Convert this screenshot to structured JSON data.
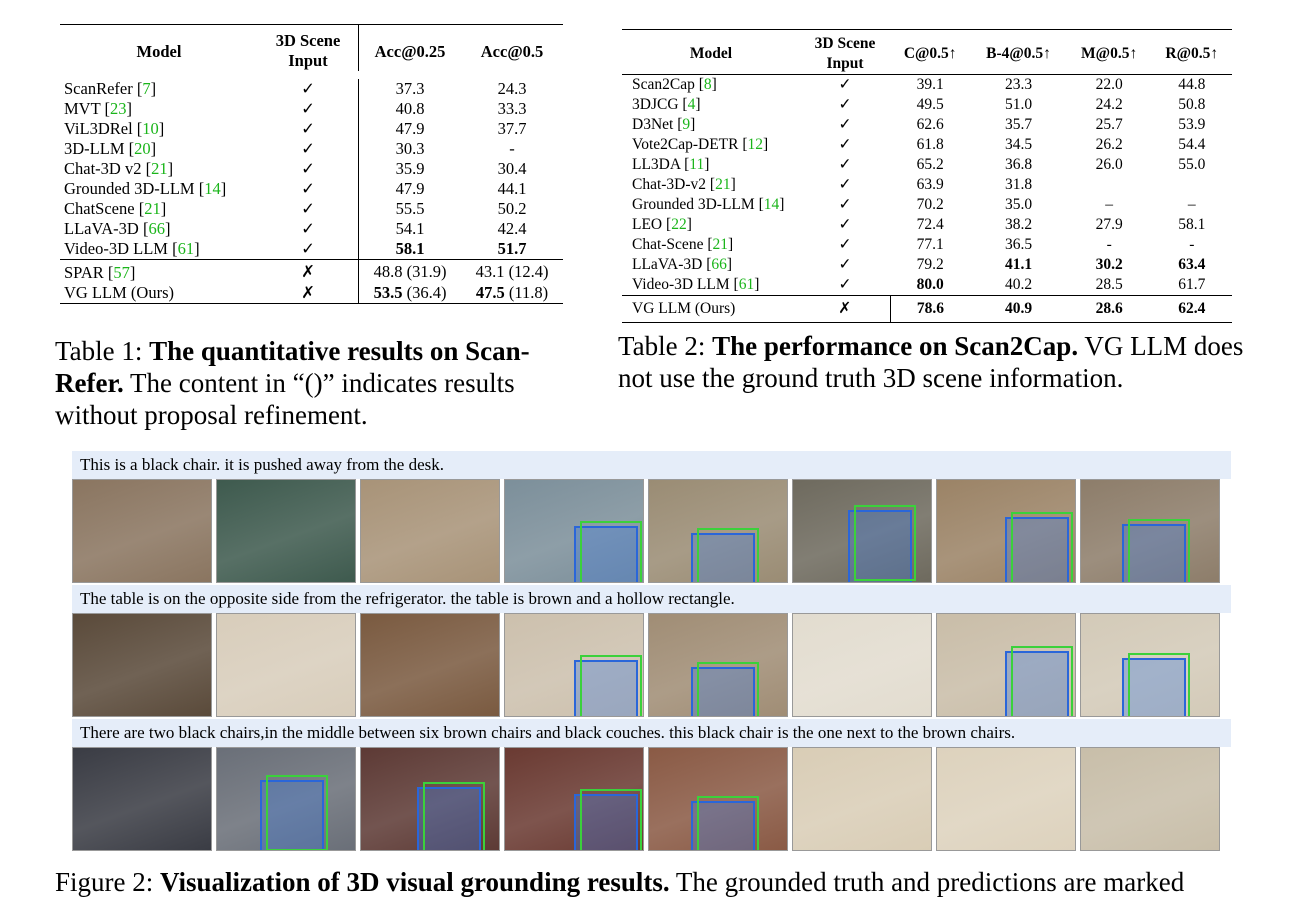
{
  "table1": {
    "headers": [
      "Model",
      "3D Scene Input",
      "Acc@0.25",
      "Acc@0.5"
    ],
    "header_lines": {
      "scene1": "3D Scene",
      "scene2": "Input"
    },
    "rows": [
      {
        "model": "ScanRefer ",
        "cite": "7",
        "input": "✓",
        "a25": "37.3",
        "a50": "24.3"
      },
      {
        "model": "MVT ",
        "cite": "23",
        "input": "✓",
        "a25": "40.8",
        "a50": "33.3"
      },
      {
        "model": "ViL3DRel ",
        "cite": "10",
        "input": "✓",
        "a25": "47.9",
        "a50": "37.7"
      },
      {
        "model": "3D-LLM ",
        "cite": "20",
        "input": "✓",
        "a25": "30.3",
        "a50": "-"
      },
      {
        "model": "Chat-3D v2 ",
        "cite": "21",
        "input": "✓",
        "a25": "35.9",
        "a50": "30.4"
      },
      {
        "model": "Grounded 3D-LLM ",
        "cite": "14",
        "input": "✓",
        "a25": "47.9",
        "a50": "44.1"
      },
      {
        "model": "ChatScene ",
        "cite": "21",
        "input": "✓",
        "a25": "55.5",
        "a50": "50.2"
      },
      {
        "model": "LLaVA-3D ",
        "cite": "66",
        "input": "✓",
        "a25": "54.1",
        "a50": "42.4"
      },
      {
        "model": "Video-3D LLM ",
        "cite": "61",
        "input": "✓",
        "a25": "58.1",
        "a50": "51.7"
      }
    ],
    "rows2": [
      {
        "model": "SPAR ",
        "cite": "57",
        "input": "✗",
        "a25_bold": "",
        "a25_rest": "48.8 (31.9)",
        "a50_bold": "",
        "a50_rest": "43.1 (12.4)"
      },
      {
        "model": "VG LLM (Ours)",
        "cite": "",
        "input": "✗",
        "a25_bold": "53.5",
        "a25_rest": " (36.4)",
        "a50_bold": "47.5",
        "a50_rest": " (11.8)"
      }
    ]
  },
  "table2": {
    "headers": [
      "Model",
      "3D Scene Input",
      "C@0.5↑",
      "B-4@0.5↑",
      "M@0.5↑",
      "R@0.5↑"
    ],
    "header_lines": {
      "scene1": "3D Scene",
      "scene2": "Input"
    },
    "rows": [
      {
        "model": "Scan2Cap ",
        "cite": "8",
        "input": "✓",
        "c": "39.1",
        "b": "23.3",
        "m": "22.0",
        "r": "44.8"
      },
      {
        "model": "3DJCG ",
        "cite": "4",
        "input": "✓",
        "c": "49.5",
        "b": "51.0",
        "m": "24.2",
        "r": "50.8"
      },
      {
        "model": "D3Net ",
        "cite": "9",
        "input": "✓",
        "c": "62.6",
        "b": "35.7",
        "m": "25.7",
        "r": "53.9"
      },
      {
        "model": "Vote2Cap-DETR ",
        "cite": "12",
        "input": "✓",
        "c": "61.8",
        "b": "34.5",
        "m": "26.2",
        "r": "54.4"
      },
      {
        "model": "LL3DA ",
        "cite": "11",
        "input": "✓",
        "c": "65.2",
        "b": "36.8",
        "m": "26.0",
        "r": "55.0"
      },
      {
        "model": "Chat-3D-v2 ",
        "cite": "21",
        "input": "✓",
        "c": "63.9",
        "b": "31.8",
        "m": "",
        "r": ""
      },
      {
        "model": "Grounded 3D-LLM ",
        "cite": "14",
        "input": "✓",
        "c": "70.2",
        "b": "35.0",
        "m": "–",
        "r": "–"
      },
      {
        "model": "LEO ",
        "cite": "22",
        "input": "✓",
        "c": "72.4",
        "b": "38.2",
        "m": "27.9",
        "r": "58.1"
      },
      {
        "model": "Chat-Scene ",
        "cite": "21",
        "input": "✓",
        "c": "77.1",
        "b": "36.5",
        "m": "-",
        "r": "-"
      },
      {
        "model": "LLaVA-3D ",
        "cite": "66",
        "input": "✓",
        "c": "79.2",
        "b": "41.1",
        "m": "30.2",
        "r": "63.4"
      },
      {
        "model": "Video-3D LLM ",
        "cite": "61",
        "input": "✓",
        "c": "80.0",
        "b": "40.2",
        "m": "28.5",
        "r": "61.7"
      }
    ],
    "ours": {
      "model": "VG LLM (Ours)",
      "input": "✗",
      "c": "78.6",
      "b": "40.9",
      "m": "28.6",
      "r": "62.4"
    }
  },
  "caption1": {
    "prefix": "Table 1: ",
    "bold": "The quantitative results on Scan-Refer.",
    "rest": " The content in “()” indicates results without proposal refinement."
  },
  "caption2": {
    "prefix": "Table 2: ",
    "bold": "The performance on Scan2Cap.",
    "rest": " VG LLM does not use the ground truth 3D scene information."
  },
  "figure": {
    "rows": [
      {
        "caption": "This is a black chair. it is pushed away from the desk."
      },
      {
        "caption": "The table is on the opposite side from the refrigerator. the table is brown and a hollow rectangle."
      },
      {
        "caption": "There are two black chairs,in the middle between six brown chairs and black couches. this black chair is the one next to the brown chairs."
      }
    ],
    "caption_prefix": "Figure 2: ",
    "caption_bold": "Visualization of 3D visual grounding results.",
    "caption_rest": " The grounded truth and predictions are marked"
  },
  "colors": {
    "cite": "#1ab51a",
    "caption_bg": "#e5edf9",
    "gt_box": "#3bd13b",
    "pred_box": "#2a66d9"
  }
}
